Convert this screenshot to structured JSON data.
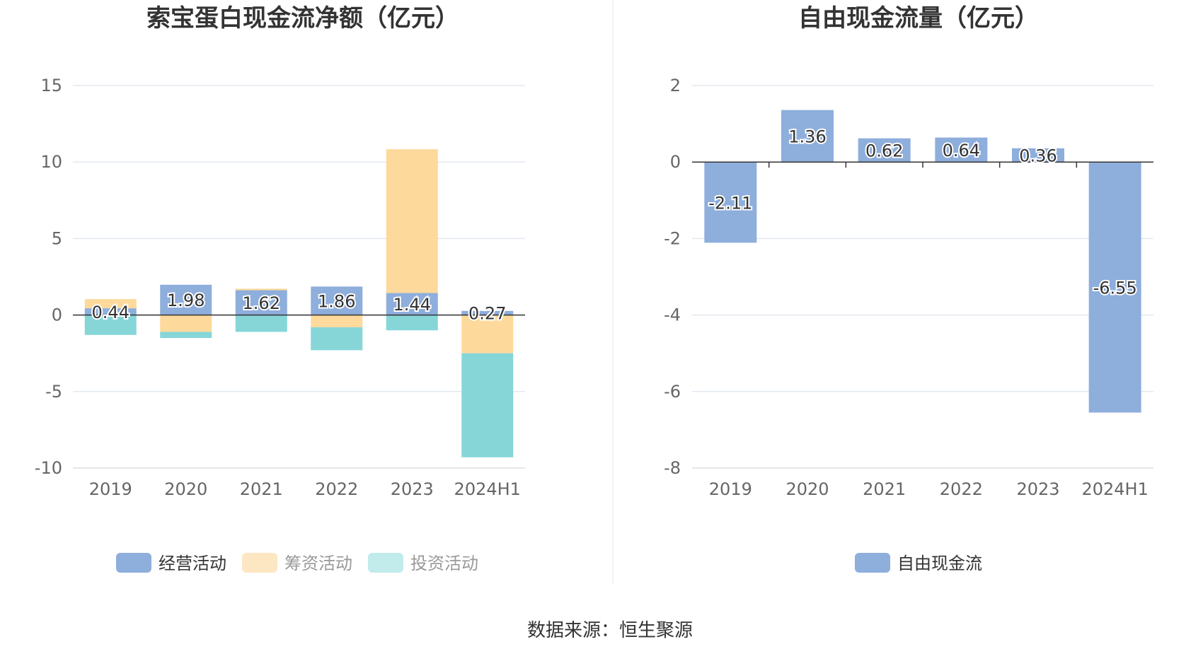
{
  "chart_data": [
    {
      "type": "bar",
      "stacked": true,
      "title": "索宝蛋白现金流净额（亿元）",
      "categories": [
        "2019",
        "2020",
        "2021",
        "2022",
        "2023",
        "2024H1"
      ],
      "ylim": [
        -10,
        15
      ],
      "yticks": [
        "15",
        "10",
        "5",
        "0",
        "-5",
        "-10"
      ],
      "ytick_values": [
        15,
        10,
        5,
        0,
        -5,
        -10
      ],
      "grid": true,
      "legend_position": "bottom",
      "series": [
        {
          "name": "经营活动",
          "color": "#8eaedc",
          "values": [
            0.44,
            1.98,
            1.62,
            1.86,
            1.44,
            0.27
          ],
          "labels": [
            "0.44",
            "1.98",
            "1.62",
            "1.86",
            "1.44",
            "0.27"
          ]
        },
        {
          "name": "筹资活动",
          "color": "#fdd99b",
          "values": [
            0.6,
            -1.1,
            0.1,
            -0.8,
            9.4,
            -2.5
          ]
        },
        {
          "name": "投资活动",
          "color": "#86d6d8",
          "values": [
            -1.3,
            -0.4,
            -1.1,
            -1.5,
            -1.0,
            -6.8
          ]
        }
      ],
      "legend_colors": [
        "#8eaedc",
        "#fde6c2",
        "#c2ebec"
      ]
    },
    {
      "type": "bar",
      "title": "自由现金流量（亿元）",
      "categories": [
        "2019",
        "2020",
        "2021",
        "2022",
        "2023",
        "2024H1"
      ],
      "ylim": [
        -8,
        2
      ],
      "yticks": [
        "2",
        "0",
        "-2",
        "-4",
        "-6",
        "-8"
      ],
      "ytick_values": [
        2,
        0,
        -2,
        -4,
        -6,
        -8
      ],
      "grid": true,
      "legend_position": "bottom",
      "series": [
        {
          "name": "自由现金流",
          "color": "#8eaedc",
          "values": [
            -2.11,
            1.36,
            0.62,
            0.64,
            0.36,
            -6.55
          ],
          "labels": [
            "-2.11",
            "1.36",
            "0.62",
            "0.64",
            "0.36",
            "-6.55"
          ]
        }
      ],
      "legend_colors": [
        "#8eaedc"
      ]
    }
  ],
  "footer": {
    "source": "数据来源：恒生聚源"
  }
}
